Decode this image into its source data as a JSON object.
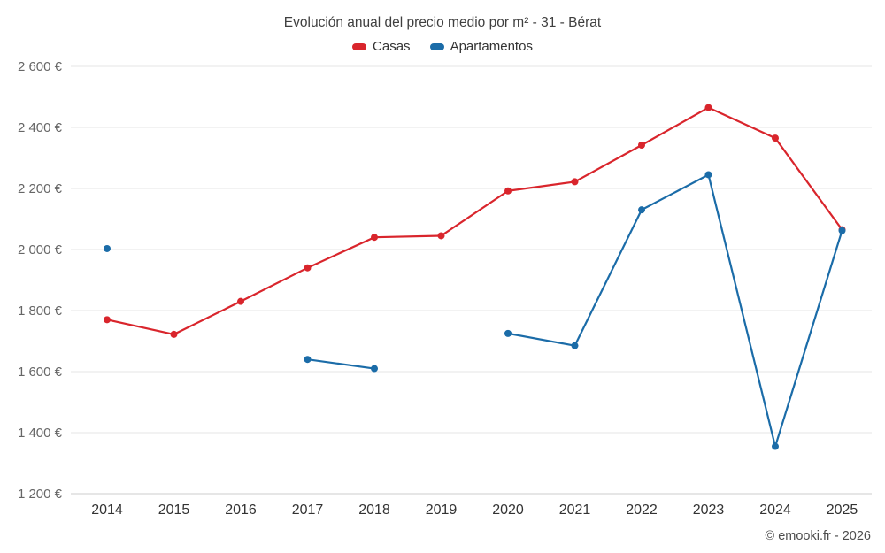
{
  "title": "Evolución anual del precio medio por m² - 31 - Bérat",
  "attribution": "© emooki.fr - 2026",
  "chart_data": {
    "type": "line",
    "title": "Evolución anual del precio medio por m² - 31 - Bérat",
    "x": [
      2014,
      2015,
      2016,
      2017,
      2018,
      2019,
      2020,
      2021,
      2022,
      2023,
      2024,
      2025
    ],
    "series": [
      {
        "name": "Casas",
        "color": "#d9252c",
        "values": [
          1770,
          1722,
          1830,
          1940,
          2040,
          2045,
          2192,
          2222,
          2342,
          2465,
          2365,
          2065
        ]
      },
      {
        "name": "Apartamentos",
        "color": "#1b6ca8",
        "values": [
          2003,
          null,
          null,
          1640,
          1610,
          null,
          1725,
          1685,
          2130,
          2245,
          1355,
          2062
        ]
      }
    ],
    "ylim": [
      1200,
      2600
    ],
    "ytick_step": 200,
    "ytick_suffix": " €",
    "grid": "horizontal",
    "legend_position": "top",
    "xlabel": "",
    "ylabel": ""
  },
  "style": {
    "grid_color": "#e6e6e6",
    "baseline_color": "#cccccc",
    "ytick_color": "#666666",
    "xtick_color": "#333333"
  }
}
